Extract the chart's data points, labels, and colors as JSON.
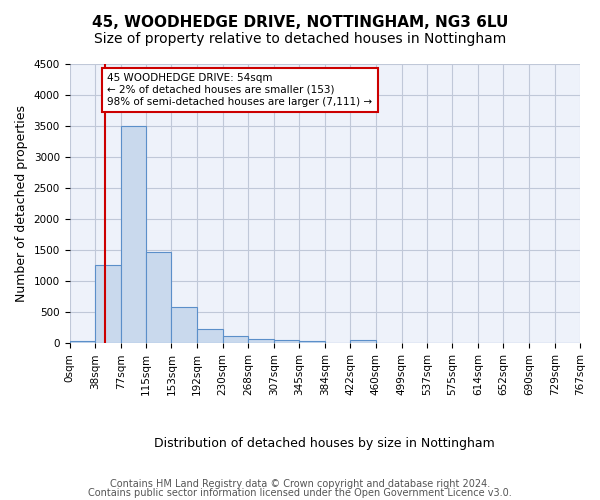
{
  "title1": "45, WOODHEDGE DRIVE, NOTTINGHAM, NG3 6LU",
  "title2": "Size of property relative to detached houses in Nottingham",
  "xlabel": "Distribution of detached houses by size in Nottingham",
  "ylabel": "Number of detached properties",
  "bin_labels": [
    "0sqm",
    "38sqm",
    "77sqm",
    "115sqm",
    "153sqm",
    "192sqm",
    "230sqm",
    "268sqm",
    "307sqm",
    "345sqm",
    "384sqm",
    "422sqm",
    "460sqm",
    "499sqm",
    "537sqm",
    "575sqm",
    "614sqm",
    "652sqm",
    "690sqm",
    "729sqm",
    "767sqm"
  ],
  "bar_heights": [
    40,
    1270,
    3500,
    1480,
    580,
    240,
    115,
    80,
    55,
    45,
    0,
    55,
    0,
    0,
    0,
    0,
    0,
    0,
    0,
    0
  ],
  "bar_color": "#c9d9ed",
  "bar_edge_color": "#5b8fc9",
  "grid_color": "#c0c8d8",
  "background_color": "#eef2fa",
  "vline_x": 54,
  "vline_color": "#cc0000",
  "annotation_text": "45 WOODHEDGE DRIVE: 54sqm\n← 2% of detached houses are smaller (153)\n98% of semi-detached houses are larger (7,111) →",
  "annotation_box_color": "#cc0000",
  "ylim": [
    0,
    4500
  ],
  "yticks": [
    0,
    500,
    1000,
    1500,
    2000,
    2500,
    3000,
    3500,
    4000,
    4500
  ],
  "footer1": "Contains HM Land Registry data © Crown copyright and database right 2024.",
  "footer2": "Contains public sector information licensed under the Open Government Licence v3.0.",
  "title1_fontsize": 11,
  "title2_fontsize": 10,
  "xlabel_fontsize": 9,
  "ylabel_fontsize": 9,
  "tick_fontsize": 7.5,
  "footer_fontsize": 7
}
